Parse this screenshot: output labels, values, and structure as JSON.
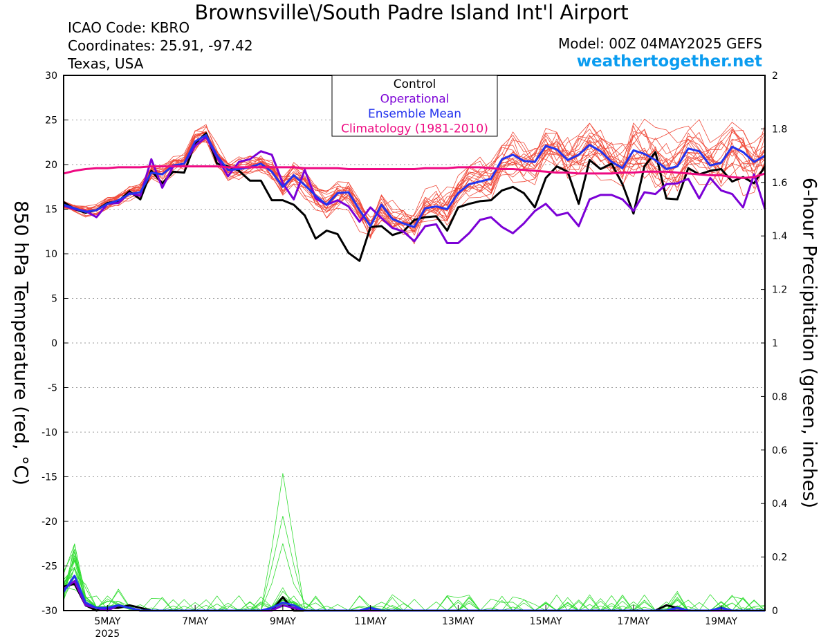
{
  "header": {
    "title": "Brownsville\\/South Padre Island Int'l Airport",
    "icao": "ICAO Code: KBRO",
    "coordinates": "Coordinates: 25.91, -97.42",
    "region": "Texas, USA",
    "model": "Model: 00Z 04MAY2025 GEFS",
    "site": "weathertogether.net"
  },
  "axes": {
    "left_label": "850 hPa Temperature (red, °C)",
    "right_label": "6-hour Precipitation (green, inches)"
  },
  "colors": {
    "control": "#000000",
    "operational": "#7b00d6",
    "ensemble_mean": "#2233ee",
    "climatology": "#ee0a82",
    "members_temp": "#f04a3a",
    "members_precip": "#30dd30",
    "grid": "#9a9a9a"
  },
  "chart_data": {
    "type": "line",
    "x_unit": "days since 00Z 04MAY2025",
    "x": [
      0,
      0.25,
      0.5,
      0.75,
      1,
      1.25,
      1.5,
      1.75,
      2,
      2.25,
      2.5,
      2.75,
      3,
      3.25,
      3.5,
      3.75,
      4,
      4.25,
      4.5,
      4.75,
      5,
      5.25,
      5.5,
      5.75,
      6,
      6.25,
      6.5,
      6.75,
      7,
      7.25,
      7.5,
      7.75,
      8,
      8.25,
      8.5,
      8.75,
      9,
      9.25,
      9.5,
      9.75,
      10,
      10.25,
      10.5,
      10.75,
      11,
      11.25,
      11.5,
      11.75,
      12,
      12.25,
      12.5,
      12.75,
      13,
      13.25,
      13.5,
      13.75,
      14,
      14.25,
      14.5,
      14.75,
      15,
      15.25,
      15.5,
      15.75,
      16
    ],
    "x_ticks": [
      {
        "value": 1,
        "label": "5MAY"
      },
      {
        "value": 3,
        "label": "7MAY"
      },
      {
        "value": 5,
        "label": "9MAY"
      },
      {
        "value": 7,
        "label": "11MAY"
      },
      {
        "value": 9,
        "label": "13MAY"
      },
      {
        "value": 11,
        "label": "15MAY"
      },
      {
        "value": 13,
        "label": "17MAY"
      },
      {
        "value": 15,
        "label": "19MAY"
      }
    ],
    "x_year_label": {
      "value": 1,
      "label": "2025"
    },
    "xlim": [
      0,
      16
    ],
    "y_left": {
      "label": "850 hPa Temperature (red, °C)",
      "lim": [
        -30,
        30
      ],
      "ticks": [
        30,
        25,
        20,
        15,
        10,
        5,
        0,
        -5,
        -10,
        -15,
        -20,
        -25,
        -30
      ]
    },
    "y_right": {
      "label": "6-hour Precipitation (green, inches)",
      "lim": [
        0,
        2
      ],
      "ticks": [
        "0",
        "0.2",
        "0.4",
        "0.6",
        "0.8",
        "1",
        "1.2",
        "1.4",
        "1.6",
        "1.8",
        "2"
      ]
    },
    "legend": {
      "position": "top-center",
      "entries": [
        "Control",
        "Operational",
        "Ensemble Mean",
        "Climatology (1981-2010)"
      ]
    },
    "grid": "horizontal dotted",
    "series": [
      {
        "name": "Control",
        "axis": "left",
        "values": [
          15.8,
          15.0,
          14.6,
          14.9,
          15.7,
          15.9,
          17.0,
          16.1,
          19.3,
          17.9,
          19.2,
          19.1,
          22.4,
          23.5,
          20.1,
          19.8,
          19.3,
          18.2,
          18.2,
          16.0,
          16.0,
          15.5,
          14.3,
          11.7,
          12.6,
          12.2,
          10.1,
          9.2,
          13.0,
          13.1,
          12.1,
          12.5,
          13.8,
          14.1,
          14.2,
          12.6,
          15.2,
          15.6,
          15.9,
          16.0,
          17.1,
          17.5,
          16.8,
          15.2,
          18.5,
          19.8,
          19.2,
          15.6,
          20.5,
          19.5,
          20.1,
          17.8,
          14.5,
          19.8,
          21.4,
          16.2,
          16.1,
          19.6,
          18.9,
          19.3,
          19.5,
          18.1,
          18.6,
          17.9,
          19.8
        ]
      },
      {
        "name": "Operational",
        "axis": "left",
        "values": [
          15.4,
          15.0,
          14.8,
          14.1,
          15.6,
          15.7,
          16.8,
          16.5,
          20.6,
          17.4,
          19.8,
          20.1,
          22.1,
          23.1,
          20.8,
          18.7,
          20.3,
          20.6,
          21.5,
          21.1,
          17.9,
          16.1,
          19.4,
          16.2,
          15.5,
          16.0,
          15.3,
          13.6,
          15.2,
          14.0,
          12.9,
          12.5,
          11.4,
          13.1,
          13.3,
          11.2,
          11.2,
          12.3,
          13.8,
          14.1,
          13.0,
          12.3,
          13.4,
          14.8,
          15.6,
          14.3,
          14.6,
          13.1,
          16.1,
          16.6,
          16.6,
          16.1,
          14.8,
          16.9,
          16.7,
          17.8,
          17.9,
          18.4,
          16.2,
          18.5,
          17.1,
          16.7,
          15.2,
          18.9,
          15.0
        ]
      },
      {
        "name": "Ensemble Mean",
        "axis": "left",
        "values": [
          15.5,
          15.1,
          14.7,
          14.9,
          15.6,
          16.0,
          16.7,
          16.9,
          19.1,
          18.9,
          19.9,
          20.1,
          22.6,
          23.3,
          21.0,
          19.4,
          19.5,
          19.7,
          20.1,
          19.2,
          17.5,
          18.8,
          17.7,
          16.5,
          15.5,
          16.8,
          16.9,
          14.9,
          13.1,
          15.5,
          13.9,
          13.4,
          13.0,
          15.1,
          15.3,
          15.0,
          16.8,
          17.8,
          18.1,
          18.4,
          20.6,
          21.1,
          20.4,
          20.3,
          22.1,
          21.7,
          20.5,
          21.1,
          22.2,
          21.5,
          20.3,
          19.6,
          21.6,
          21.2,
          20.5,
          19.5,
          19.8,
          21.8,
          21.5,
          19.9,
          20.2,
          22.0,
          21.4,
          20.3,
          21.0
        ]
      },
      {
        "name": "Climatology (1981-2010)",
        "axis": "left",
        "values": [
          19.0,
          19.3,
          19.5,
          19.6,
          19.6,
          19.7,
          19.7,
          19.7,
          19.8,
          19.8,
          19.8,
          19.8,
          19.8,
          19.8,
          19.8,
          19.7,
          19.7,
          19.7,
          19.7,
          19.7,
          19.7,
          19.7,
          19.6,
          19.6,
          19.6,
          19.6,
          19.5,
          19.5,
          19.5,
          19.5,
          19.5,
          19.5,
          19.5,
          19.6,
          19.6,
          19.6,
          19.7,
          19.7,
          19.7,
          19.6,
          19.5,
          19.5,
          19.4,
          19.3,
          19.2,
          19.1,
          19.1,
          19.0,
          19.0,
          19.0,
          19.0,
          19.1,
          19.1,
          19.2,
          19.2,
          19.2,
          19.1,
          19.0,
          18.9,
          18.8,
          18.8,
          18.6,
          18.5,
          18.6,
          19.0
        ]
      },
      {
        "name": "Control",
        "axis": "right",
        "variable": "precip",
        "values": [
          0.09,
          0.1,
          0.02,
          0.0,
          0.01,
          0.01,
          0.02,
          0.01,
          0.0,
          0.0,
          0.0,
          0.0,
          0.0,
          0.0,
          0.0,
          0.0,
          0.0,
          0.0,
          0.0,
          0.0,
          0.05,
          0.0,
          0.0,
          0.0,
          0.0,
          0.0,
          0.0,
          0.0,
          0.0,
          0.0,
          0.0,
          0.0,
          0.0,
          0.0,
          0.0,
          0.0,
          0.0,
          0.0,
          0.0,
          0.0,
          0.0,
          0.0,
          0.0,
          0.0,
          0.0,
          0.0,
          0.0,
          0.0,
          0.0,
          0.0,
          0.0,
          0.0,
          0.0,
          0.0,
          0.0,
          0.02,
          0.01,
          0.0,
          0.0,
          0.0,
          0.0,
          0.0,
          0.0,
          0.0,
          0.0
        ]
      },
      {
        "name": "Operational",
        "axis": "right",
        "variable": "precip",
        "values": [
          0.08,
          0.11,
          0.02,
          0.01,
          0.0,
          0.02,
          0.01,
          0.0,
          0.0,
          0.0,
          0.0,
          0.0,
          0.0,
          0.0,
          0.0,
          0.0,
          0.0,
          0.0,
          0.0,
          0.0,
          0.02,
          0.01,
          0.0,
          0.0,
          0.0,
          0.0,
          0.0,
          0.0,
          0.0,
          0.0,
          0.0,
          0.0,
          0.0,
          0.0,
          0.0,
          0.0,
          0.0,
          0.0,
          0.0,
          0.0,
          0.0,
          0.0,
          0.0,
          0.0,
          0.0,
          0.0,
          0.0,
          0.0,
          0.0,
          0.0,
          0.0,
          0.0,
          0.0,
          0.0,
          0.0,
          0.0,
          0.0,
          0.0,
          0.0,
          0.0,
          0.0,
          0.0,
          0.0,
          0.0,
          0.0
        ]
      },
      {
        "name": "Ensemble Mean",
        "axis": "right",
        "variable": "precip",
        "values": [
          0.07,
          0.13,
          0.03,
          0.01,
          0.01,
          0.02,
          0.01,
          0.0,
          0.0,
          0.0,
          0.0,
          0.0,
          0.0,
          0.0,
          0.0,
          0.0,
          0.0,
          0.0,
          0.0,
          0.01,
          0.03,
          0.02,
          0.0,
          0.0,
          0.0,
          0.0,
          0.0,
          0.0,
          0.01,
          0.0,
          0.0,
          0.0,
          0.0,
          0.0,
          0.0,
          0.0,
          0.0,
          0.0,
          0.0,
          0.0,
          0.0,
          0.0,
          0.0,
          0.0,
          0.0,
          0.0,
          0.0,
          0.0,
          0.0,
          0.0,
          0.0,
          0.0,
          0.0,
          0.0,
          0.0,
          0.0,
          0.01,
          0.0,
          0.0,
          0.0,
          0.01,
          0.0,
          0.0,
          0.0,
          0.0
        ]
      }
    ]
  }
}
